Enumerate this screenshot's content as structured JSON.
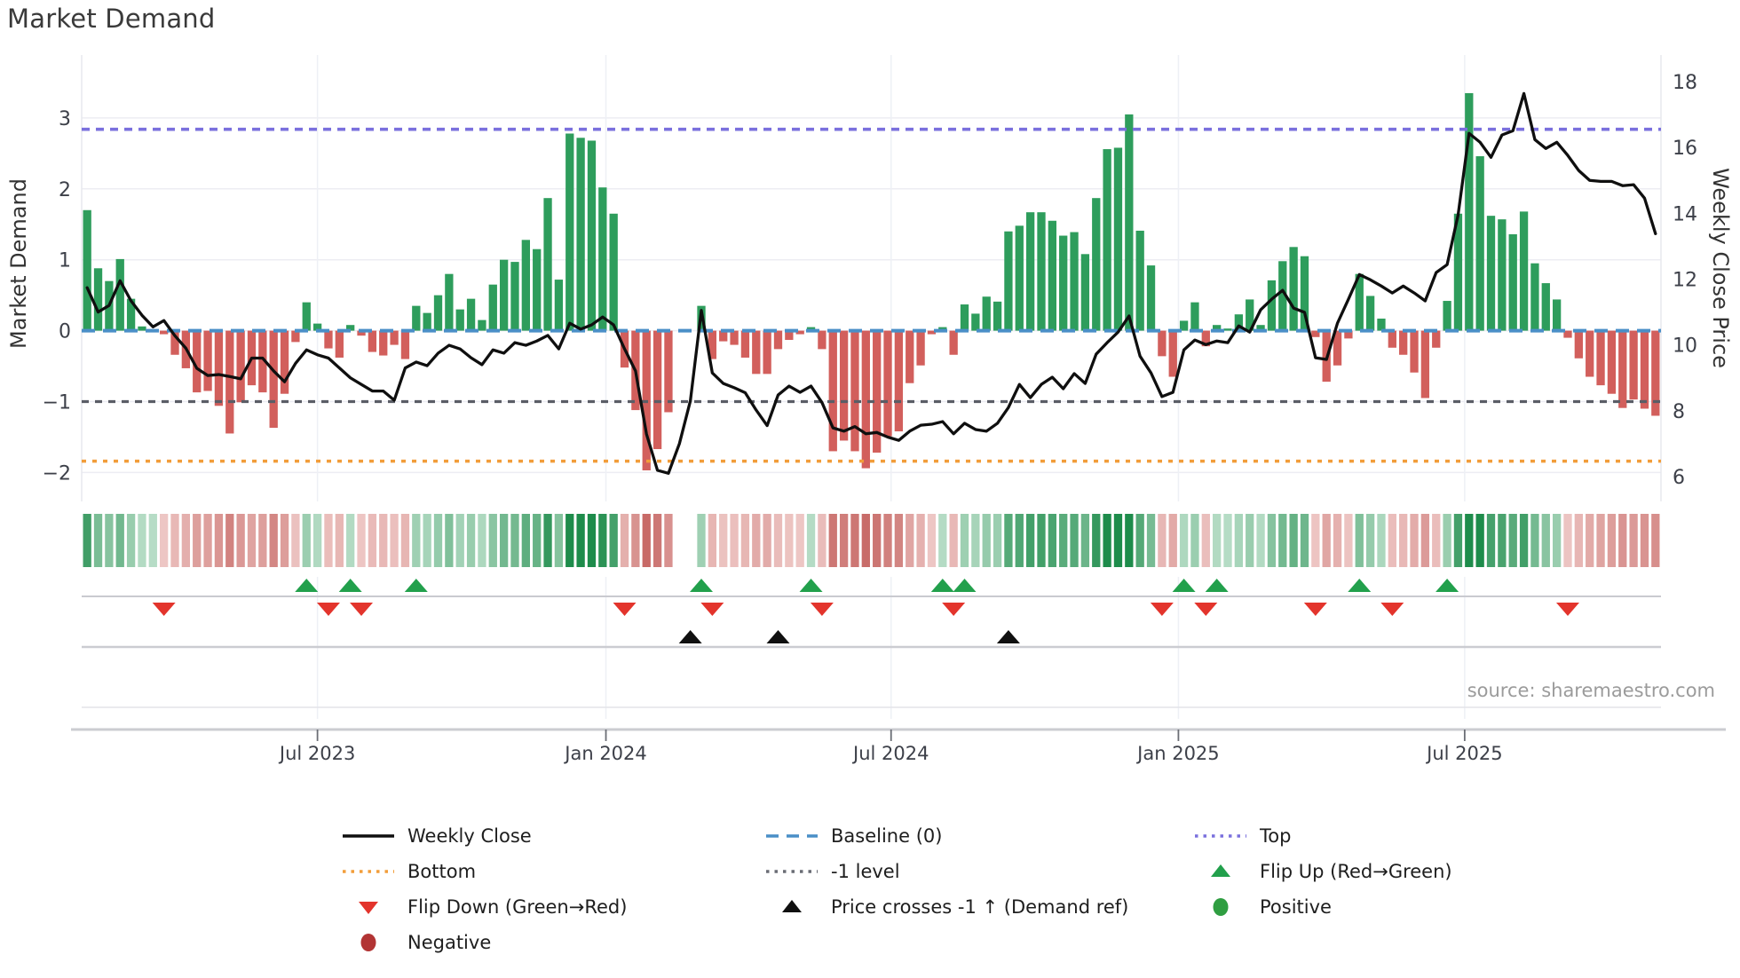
{
  "title": "Market Demand",
  "source": "source: sharemaestro.com",
  "axes": {
    "left_label": "Market Demand",
    "right_label": "Weekly Close Price",
    "left_ticks": [
      "3",
      "2",
      "1",
      "0",
      "−1",
      "−2"
    ],
    "left_tick_values": [
      3,
      2,
      1,
      0,
      -1,
      -2
    ],
    "right_ticks": [
      "18",
      "16",
      "14",
      "12",
      "10",
      "8",
      "6"
    ],
    "right_tick_values": [
      18,
      16,
      14,
      12,
      10,
      8,
      6
    ]
  },
  "colors": {
    "bar_positive": "#2e9d5c",
    "bar_negative": "#d25f5c",
    "price_line": "#0f0f0f",
    "baseline": "#4a8fc7",
    "top_level": "#7a70dd",
    "bottom_level": "#f29d3a",
    "minus1_level": "#5a5d66",
    "grid": "#ededf3",
    "vgrid": "#eef0f5",
    "axis_line": "#cbccd1",
    "tick_text": "#3d4049",
    "marker_flip_up": "#22a04c",
    "marker_flip_down": "#e3342c",
    "marker_price_cross": "#101010",
    "legend_positive_dot": "#2f9e41",
    "legend_negative_dot": "#b23434",
    "heat_pos_light": "#d9efe2",
    "heat_pos_dark": "#1e8c4b",
    "heat_neg_light": "#f8e0de",
    "heat_neg_dark": "#c35f5c"
  },
  "legend": {
    "columns": [
      [
        {
          "swatch": "line",
          "color": "#0f0f0f",
          "label": "Weekly Close"
        },
        {
          "swatch": "dotted",
          "color": "#f29d3a",
          "label": "Bottom"
        },
        {
          "swatch": "tri-down",
          "color": "#e3342c",
          "label": "Flip Down (Green→Red)"
        },
        {
          "swatch": "circle",
          "color": "#b23434",
          "label": "Negative"
        }
      ],
      [
        {
          "swatch": "dashed",
          "color": "#4a8fc7",
          "label": "Baseline (0)"
        },
        {
          "swatch": "dotted",
          "color": "#6a6d75",
          "label": "-1 level"
        },
        {
          "swatch": "tri-up",
          "color": "#101010",
          "label": "Price crosses -1 ↑ (Demand ref)"
        }
      ],
      [
        {
          "swatch": "dotted",
          "color": "#7a70dd",
          "label": "Top"
        },
        {
          "swatch": "tri-up",
          "color": "#22a04c",
          "label": "Flip Up (Red→Green)"
        },
        {
          "swatch": "circle",
          "color": "#2f9e41",
          "label": "Positive"
        }
      ]
    ]
  },
  "chart_data": {
    "type": "combo",
    "title": "Market Demand",
    "x_unit": "weekly",
    "n_weeks": 144,
    "x_ticks": [
      {
        "label": "Jul 2023",
        "week": 21.0
      },
      {
        "label": "Jan 2024",
        "week": 47.3
      },
      {
        "label": "Jul 2024",
        "week": 73.3
      },
      {
        "label": "Jan 2025",
        "week": 99.5
      },
      {
        "label": "Jul 2025",
        "week": 125.6
      }
    ],
    "ylabel_left": "Market Demand",
    "ylabel_right": "Weekly Close Price",
    "ylim_left": [
      -2.4,
      3.9
    ],
    "ylim_right": [
      5.2,
      18.8
    ],
    "levels": {
      "baseline": 0,
      "top": 2.84,
      "bottom": -1.84,
      "minus1": -1
    },
    "series": [
      {
        "name": "Market Demand (bars)",
        "type": "bar",
        "values": [
          1.7,
          0.88,
          0.7,
          1.01,
          0.45,
          0.06,
          0.02,
          -0.05,
          -0.34,
          -0.53,
          -0.87,
          -0.85,
          -1.06,
          -1.45,
          -1.01,
          -0.77,
          -0.87,
          -1.37,
          -0.89,
          -0.16,
          0.4,
          0.1,
          -0.25,
          -0.38,
          0.08,
          -0.07,
          -0.3,
          -0.35,
          -0.2,
          -0.4,
          0.35,
          0.25,
          0.5,
          0.8,
          0.3,
          0.45,
          0.15,
          0.65,
          1.0,
          0.97,
          1.28,
          1.15,
          1.87,
          0.72,
          2.78,
          2.72,
          2.68,
          2.02,
          1.65,
          -0.52,
          -1.12,
          -1.97,
          -1.67,
          -1.15,
          0.0,
          0.0,
          0.35,
          -0.4,
          -0.15,
          -0.2,
          -0.38,
          -0.61,
          -0.61,
          -0.26,
          -0.13,
          -0.05,
          0.05,
          -0.26,
          -1.7,
          -1.55,
          -1.7,
          -1.94,
          -1.72,
          -1.49,
          -1.42,
          -0.74,
          -0.49,
          -0.05,
          0.05,
          -0.34,
          0.37,
          0.24,
          0.48,
          0.41,
          1.4,
          1.48,
          1.67,
          1.67,
          1.55,
          1.34,
          1.39,
          1.08,
          1.87,
          2.56,
          2.58,
          3.05,
          1.41,
          0.92,
          -0.36,
          -0.65,
          0.14,
          0.4,
          -0.22,
          0.08,
          0.03,
          0.23,
          0.44,
          0.08,
          0.71,
          0.98,
          1.18,
          1.05,
          -0.09,
          -0.72,
          -0.49,
          -0.11,
          0.8,
          0.49,
          0.17,
          -0.24,
          -0.34,
          -0.59,
          -0.95,
          -0.24,
          0.42,
          1.65,
          3.35,
          2.46,
          1.62,
          1.57,
          1.36,
          1.68,
          0.95,
          0.67,
          0.44,
          -0.1,
          -0.39,
          -0.65,
          -0.77,
          -0.89,
          -1.09,
          -0.97,
          -1.1,
          -1.2
        ]
      },
      {
        "name": "Weekly Close",
        "type": "line",
        "values": [
          11.74,
          11.0,
          11.2,
          11.95,
          11.34,
          10.9,
          10.55,
          10.74,
          10.28,
          9.9,
          9.29,
          9.07,
          9.1,
          9.04,
          8.97,
          9.6,
          9.6,
          9.21,
          8.88,
          9.44,
          9.85,
          9.7,
          9.6,
          9.3,
          9.0,
          8.8,
          8.6,
          8.6,
          8.32,
          9.3,
          9.48,
          9.37,
          9.75,
          9.99,
          9.88,
          9.61,
          9.4,
          9.85,
          9.75,
          10.07,
          9.99,
          10.12,
          10.29,
          9.88,
          10.66,
          10.48,
          10.61,
          10.85,
          10.61,
          9.88,
          9.21,
          7.29,
          6.19,
          6.1,
          7.0,
          8.3,
          11.05,
          9.15,
          8.83,
          8.7,
          8.55,
          8.02,
          7.55,
          8.48,
          8.75,
          8.56,
          8.75,
          8.25,
          7.48,
          7.38,
          7.52,
          7.3,
          7.34,
          7.2,
          7.1,
          7.38,
          7.56,
          7.59,
          7.67,
          7.3,
          7.62,
          7.43,
          7.38,
          7.62,
          8.1,
          8.8,
          8.4,
          8.8,
          9.02,
          8.67,
          9.13,
          8.83,
          9.72,
          10.07,
          10.39,
          10.88,
          9.66,
          9.15,
          8.43,
          8.56,
          9.85,
          10.15,
          10.01,
          10.12,
          10.07,
          10.58,
          10.39,
          11.07,
          11.39,
          11.66,
          11.12,
          10.99,
          9.61,
          9.56,
          10.66,
          11.39,
          12.14,
          11.98,
          11.79,
          11.58,
          11.79,
          11.58,
          11.34,
          12.2,
          12.44,
          13.95,
          16.43,
          16.16,
          15.7,
          16.38,
          16.51,
          17.64,
          16.24,
          15.97,
          16.16,
          15.76,
          15.3,
          15.0,
          14.97,
          14.97,
          14.84,
          14.87,
          14.46,
          13.38
        ]
      }
    ],
    "heatmap": {
      "derived_from": "demand bar sign and magnitude",
      "gap_weeks": [
        54,
        55
      ]
    },
    "markers": {
      "flip_up_weeks": [
        20,
        24,
        30,
        56,
        66,
        78,
        80,
        100,
        103,
        116,
        124
      ],
      "flip_down_weeks": [
        7,
        22,
        25,
        49,
        57,
        67,
        79,
        98,
        102,
        112,
        119,
        135
      ],
      "price_cross_weeks": [
        55,
        63,
        84
      ]
    },
    "legend_position": "bottom"
  }
}
